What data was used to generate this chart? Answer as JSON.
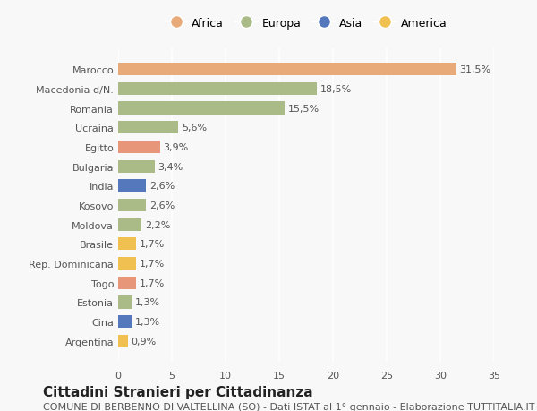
{
  "categories": [
    "Argentina",
    "Cina",
    "Estonia",
    "Togo",
    "Rep. Dominicana",
    "Brasile",
    "Moldova",
    "Kosovo",
    "India",
    "Bulgaria",
    "Egitto",
    "Ucraina",
    "Romania",
    "Macedonia d/N.",
    "Marocco"
  ],
  "values": [
    0.9,
    1.3,
    1.3,
    1.7,
    1.7,
    1.7,
    2.2,
    2.6,
    2.6,
    3.4,
    3.9,
    5.6,
    15.5,
    18.5,
    31.5
  ],
  "labels": [
    "0,9%",
    "1,3%",
    "1,3%",
    "1,7%",
    "1,7%",
    "1,7%",
    "2,2%",
    "2,6%",
    "2,6%",
    "3,4%",
    "3,9%",
    "5,6%",
    "15,5%",
    "18,5%",
    "31,5%"
  ],
  "colors": [
    "#f0c050",
    "#5577bb",
    "#aabb88",
    "#e8967a",
    "#f0c050",
    "#f0c050",
    "#aabb88",
    "#aabb88",
    "#5577bb",
    "#aabb88",
    "#e8967a",
    "#aabb88",
    "#aabb88",
    "#aabb88",
    "#e8aa78"
  ],
  "continent": [
    "America",
    "Asia",
    "Europa",
    "Africa",
    "America",
    "America",
    "Europa",
    "Europa",
    "Asia",
    "Europa",
    "Africa",
    "Europa",
    "Europa",
    "Europa",
    "Africa"
  ],
  "legend_labels": [
    "Africa",
    "Europa",
    "Asia",
    "America"
  ],
  "legend_colors": [
    "#e8aa78",
    "#aabb88",
    "#5577bb",
    "#f0c050"
  ],
  "title": "Cittadini Stranieri per Cittadinanza",
  "subtitle": "COMUNE DI BERBENNO DI VALTELLINA (SO) - Dati ISTAT al 1° gennaio - Elaborazione TUTTITALIA.IT",
  "xlim": [
    0,
    35
  ],
  "xticks": [
    0,
    5,
    10,
    15,
    20,
    25,
    30,
    35
  ],
  "background_color": "#f8f8f8",
  "bar_height": 0.65,
  "title_fontsize": 11,
  "subtitle_fontsize": 8,
  "label_fontsize": 8,
  "tick_fontsize": 8,
  "legend_fontsize": 9
}
